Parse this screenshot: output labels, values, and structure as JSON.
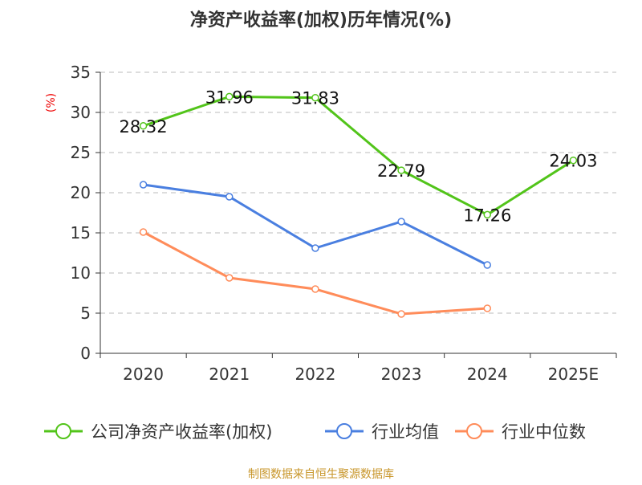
{
  "chart_data": {
    "type": "line",
    "title": "净资产收益率(加权)历年情况(%)",
    "ylabel": "(%)",
    "categories": [
      "2020",
      "2021",
      "2022",
      "2023",
      "2024",
      "2025E"
    ],
    "ylim": [
      0,
      35
    ],
    "yticks": [
      0,
      5,
      10,
      15,
      20,
      25,
      30,
      35
    ],
    "grid": true,
    "legend_position": "bottom",
    "series": [
      {
        "name": "公司净资产收益率(加权)",
        "color": "#52c41a",
        "values": [
          28.32,
          31.96,
          31.83,
          22.79,
          17.26,
          24.03
        ],
        "labels": [
          "28.32",
          "31.96",
          "31.83",
          "22.79",
          "17.26",
          "24.03"
        ]
      },
      {
        "name": "行业均值",
        "color": "#4a7fe0",
        "values": [
          21.0,
          19.5,
          13.1,
          16.4,
          11.0,
          null
        ]
      },
      {
        "name": "行业中位数",
        "color": "#ff8c5a",
        "values": [
          15.1,
          9.4,
          8.0,
          4.9,
          5.6,
          null
        ]
      }
    ],
    "source": "制图数据来自恒生聚源数据库"
  }
}
